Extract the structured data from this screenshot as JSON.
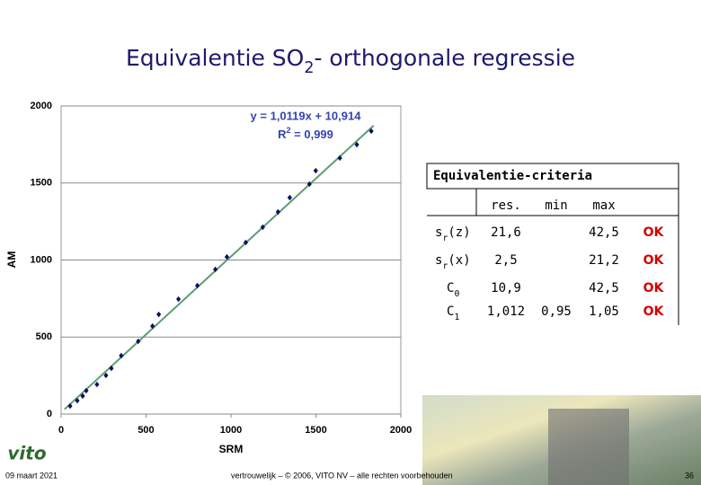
{
  "title": {
    "parts": [
      "Equivalentie SO",
      "2",
      "- orthogonale regressie"
    ]
  },
  "chart_data": {
    "type": "scatter",
    "x": [
      53,
      95,
      127,
      148,
      211,
      264,
      296,
      354,
      454,
      538,
      575,
      691,
      802,
      908,
      976,
      1087,
      1187,
      1277,
      1346,
      1462,
      1499,
      1641,
      1741,
      1826
    ],
    "values": [
      52,
      87,
      117,
      152,
      192,
      251,
      297,
      379,
      472,
      571,
      647,
      746,
      834,
      939,
      1020,
      1114,
      1213,
      1312,
      1405,
      1493,
      1580,
      1662,
      1749,
      1837
    ],
    "color": "#101060",
    "trendline": {
      "x": [
        20,
        1840
      ],
      "y": [
        31,
        1873
      ],
      "color": "#5b9e72"
    },
    "equation": "y = 1,0119x + 10,914",
    "r2": {
      "parts": [
        "R",
        "2",
        " = 0,999"
      ]
    },
    "xlabel": "SRM",
    "ylabel": "AM",
    "xlim": [
      0,
      2000
    ],
    "ylim": [
      0,
      2000
    ],
    "xticks": [
      0,
      500,
      1000,
      1500,
      2000
    ],
    "yticks": [
      0,
      500,
      1000,
      1500,
      2000
    ],
    "grid": true
  },
  "table": {
    "title": "Equivalentie-criteria",
    "columns": [
      "res.",
      "min",
      "max"
    ],
    "rows": [
      {
        "label": [
          "s",
          "r",
          "(z)"
        ],
        "res": "21,6",
        "min": null,
        "max": "42,5",
        "status": "OK"
      },
      {
        "label": [
          "s",
          "r",
          "(x)"
        ],
        "res": "2,5",
        "min": null,
        "max": "21,2",
        "status": "OK"
      },
      {
        "label": [
          "C",
          "0",
          null
        ],
        "res": "10,9",
        "min": null,
        "max": "42,5",
        "status": "OK"
      },
      {
        "label": [
          "C",
          "1",
          null
        ],
        "res": "1,012",
        "min": "0,95",
        "max": "1,05",
        "status": "OK"
      }
    ]
  },
  "logo": "vito",
  "footer": {
    "date": "09 maart 2021",
    "copyright": "vertrouwelijk – © 2006, VITO NV – alle rechten voorbehouden",
    "page": "36"
  }
}
